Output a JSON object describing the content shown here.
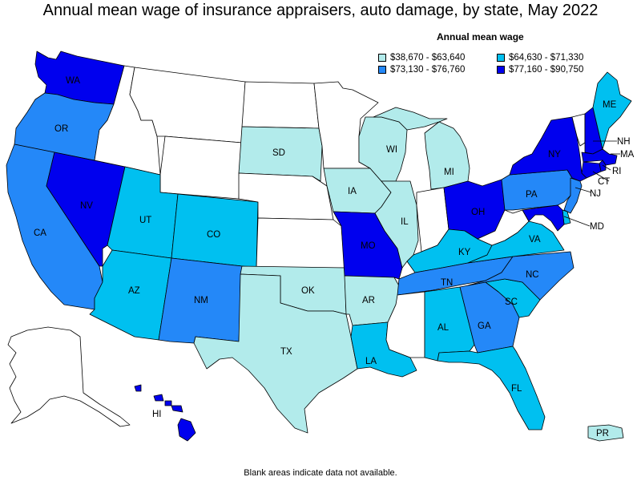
{
  "title": "Annual mean wage of insurance appraisers, auto damage, by state, May 2022",
  "legend": {
    "title": "Annual mean wage",
    "bins": [
      {
        "key": "b1",
        "label": "$38,670 - $63,640",
        "color": "#b2ebeb"
      },
      {
        "key": "b2",
        "label": "$64,630 - $71,330",
        "color": "#00c0f0"
      },
      {
        "key": "b3",
        "label": "$73,130 - $76,760",
        "color": "#2488f8"
      },
      {
        "key": "b4",
        "label": "$77,160 - $90,750",
        "color": "#0000ee"
      }
    ]
  },
  "no_data_color": "#ffffff",
  "footer": "Blank areas indicate data not available.",
  "states": {
    "WA": {
      "label": "WA",
      "bin": "b4"
    },
    "OR": {
      "label": "OR",
      "bin": "b3"
    },
    "CA": {
      "label": "CA",
      "bin": "b3"
    },
    "NV": {
      "label": "NV",
      "bin": "b4"
    },
    "ID": {
      "label": "",
      "bin": null
    },
    "MT": {
      "label": "",
      "bin": null
    },
    "WY": {
      "label": "",
      "bin": null
    },
    "UT": {
      "label": "UT",
      "bin": "b2"
    },
    "CO": {
      "label": "CO",
      "bin": "b2"
    },
    "AZ": {
      "label": "AZ",
      "bin": "b2"
    },
    "NM": {
      "label": "NM",
      "bin": "b3"
    },
    "ND": {
      "label": "",
      "bin": null
    },
    "SD": {
      "label": "SD",
      "bin": "b1"
    },
    "NE": {
      "label": "",
      "bin": null
    },
    "KS": {
      "label": "",
      "bin": null
    },
    "OK": {
      "label": "OK",
      "bin": "b1"
    },
    "TX": {
      "label": "TX",
      "bin": "b1"
    },
    "MN": {
      "label": "",
      "bin": null
    },
    "IA": {
      "label": "IA",
      "bin": "b1"
    },
    "MO": {
      "label": "MO",
      "bin": "b4"
    },
    "AR": {
      "label": "AR",
      "bin": "b1"
    },
    "LA": {
      "label": "LA",
      "bin": "b2"
    },
    "WI": {
      "label": "WI",
      "bin": "b1"
    },
    "IL": {
      "label": "IL",
      "bin": "b1"
    },
    "MI": {
      "label": "MI",
      "bin": "b1"
    },
    "IN": {
      "label": "",
      "bin": null
    },
    "OH": {
      "label": "OH",
      "bin": "b4"
    },
    "KY": {
      "label": "KY",
      "bin": "b2"
    },
    "TN": {
      "label": "TN",
      "bin": "b3"
    },
    "MS": {
      "label": "",
      "bin": null
    },
    "AL": {
      "label": "AL",
      "bin": "b2"
    },
    "GA": {
      "label": "GA",
      "bin": "b3"
    },
    "FL": {
      "label": "FL",
      "bin": "b2"
    },
    "SC": {
      "label": "SC",
      "bin": "b2"
    },
    "NC": {
      "label": "NC",
      "bin": "b3"
    },
    "VA": {
      "label": "VA",
      "bin": "b2"
    },
    "WV": {
      "label": "",
      "bin": null
    },
    "PA": {
      "label": "PA",
      "bin": "b3"
    },
    "NY": {
      "label": "NY",
      "bin": "b4"
    },
    "VT": {
      "label": "",
      "bin": null
    },
    "NH": {
      "label": "NH",
      "bin": "b4"
    },
    "ME": {
      "label": "ME",
      "bin": "b2"
    },
    "MA": {
      "label": "MA",
      "bin": "b4"
    },
    "RI": {
      "label": "RI",
      "bin": "b4"
    },
    "CT": {
      "label": "CT",
      "bin": "b4"
    },
    "NJ": {
      "label": "NJ",
      "bin": "b3"
    },
    "DE": {
      "label": "",
      "bin": "b2"
    },
    "MD": {
      "label": "MD",
      "bin": "b4"
    },
    "AK": {
      "label": "",
      "bin": null
    },
    "HI": {
      "label": "HI",
      "bin": "b4"
    },
    "PR": {
      "label": "PR",
      "bin": "b1"
    }
  }
}
